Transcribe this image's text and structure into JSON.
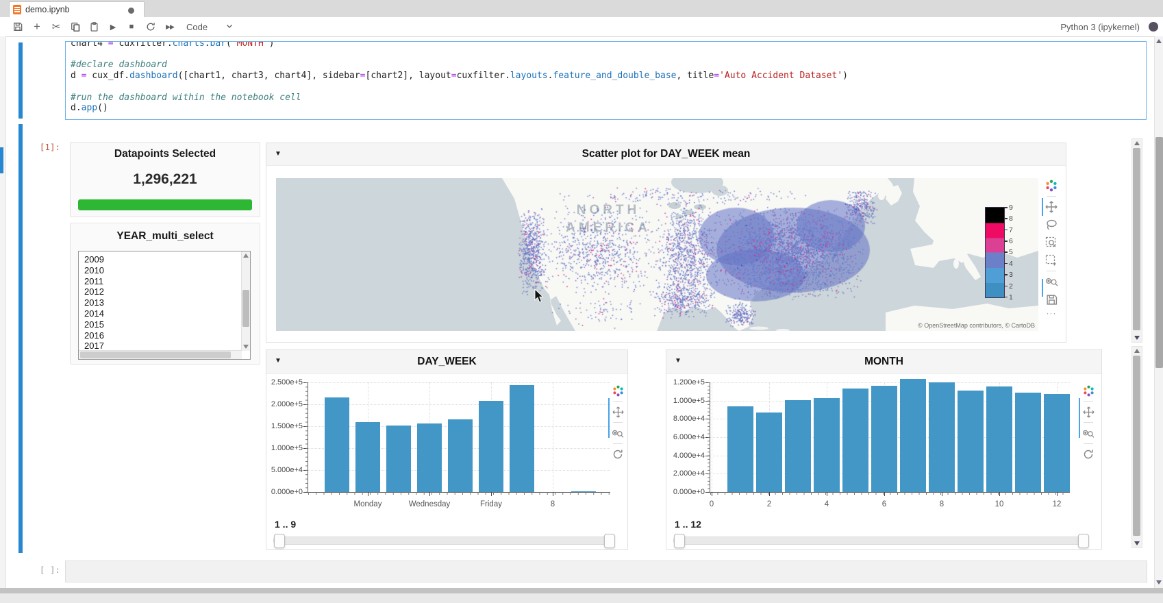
{
  "window": {
    "tab": {
      "title": "demo.ipynb",
      "modified": true
    }
  },
  "toolbar": {
    "celltype": "Code",
    "kernel": "Python 3 (ipykernel)"
  },
  "cell": {
    "out_prompt": "[1]:",
    "empty_prompt": "[ ]:",
    "code_lines": [
      [
        [
          "n",
          "chart4 "
        ],
        [
          "op",
          "="
        ],
        [
          "n",
          " cuxfilter."
        ],
        [
          "pp",
          "charts"
        ],
        [
          "n",
          "."
        ],
        [
          "pp",
          "bar"
        ],
        [
          "n",
          "("
        ],
        [
          "str",
          "'MONTH'"
        ],
        [
          "n",
          ")"
        ]
      ],
      [],
      [
        [
          "com",
          "#declare dashboard"
        ]
      ],
      [
        [
          "n",
          "d "
        ],
        [
          "op",
          "="
        ],
        [
          "n",
          " cux_df."
        ],
        [
          "pp",
          "dashboard"
        ],
        [
          "n",
          "([chart1, chart3, chart4], sidebar"
        ],
        [
          "op",
          "="
        ],
        [
          "n",
          "[chart2], layout"
        ],
        [
          "op",
          "="
        ],
        [
          "n",
          "cuxfilter."
        ],
        [
          "pp",
          "layouts"
        ],
        [
          "n",
          "."
        ],
        [
          "pp",
          "feature_and_double_base"
        ],
        [
          "n",
          ", title"
        ],
        [
          "op",
          "="
        ],
        [
          "str",
          "'Auto Accident Dataset'"
        ],
        [
          "n",
          ")"
        ]
      ],
      [],
      [
        [
          "com",
          "#run the dashboard within the notebook cell"
        ]
      ],
      [
        [
          "n",
          "d."
        ],
        [
          "pp",
          "app"
        ],
        [
          "n",
          "()"
        ]
      ]
    ]
  },
  "dashboard": {
    "sidebar": {
      "datapoints": {
        "title": "Datapoints Selected",
        "value": "1,296,221",
        "bar_color": "#2eb734"
      },
      "year": {
        "title": "YEAR_multi_select",
        "options": [
          "2009",
          "2010",
          "2011",
          "2012",
          "2013",
          "2014",
          "2015",
          "2016",
          "2017"
        ]
      }
    },
    "scatter": {
      "title": "Scatter plot for DAY_WEEK mean",
      "map_label_line1": "NORTH",
      "map_label_line2": "AMERICA",
      "attribution": "© OpenStreetMap contributors, © CartoDB"
    }
  },
  "chart_data": [
    {
      "type": "scatter",
      "title": "Scatter plot for DAY_WEEK mean",
      "description": "Geo scatter of ~1,296,221 auto accident points over a United States basemap, colored by DAY_WEEK mean",
      "colorbar": {
        "ticks": [
          9,
          8,
          7,
          6,
          5,
          4,
          3,
          2,
          1
        ],
        "colors": [
          "#000000",
          "#ef0b64",
          "#db4095",
          "#6c80ca",
          "#4f9fd6",
          "#3e90c2"
        ]
      },
      "point_colors": {
        "dominant": "#6577c5",
        "accents": [
          "#b94a9f",
          "#e22079"
        ]
      }
    },
    {
      "type": "bar",
      "title": "DAY_WEEK",
      "x": [
        1,
        2,
        3,
        4,
        5,
        6,
        7,
        9
      ],
      "values": [
        215000,
        160000,
        152000,
        157000,
        166000,
        208000,
        244000,
        2000
      ],
      "yticks": [
        "2.500e+5",
        "2.000e+5",
        "1.500e+5",
        "1.000e+5",
        "5.000e+4",
        "0.000e+0"
      ],
      "xticks": [
        "Monday",
        "Wednesday",
        "Friday",
        "8"
      ],
      "xtick_positions": [
        2,
        4,
        6,
        8
      ],
      "ylim": [
        0,
        250000
      ],
      "xlim": [
        0.5,
        9.5
      ],
      "bar_color": "#4297c6",
      "range_label": "1 .. 9"
    },
    {
      "type": "bar",
      "title": "MONTH",
      "x": [
        1,
        2,
        3,
        4,
        5,
        6,
        7,
        8,
        9,
        10,
        11,
        12
      ],
      "values": [
        94000,
        87000,
        100500,
        103000,
        113000,
        116000,
        123500,
        120000,
        111000,
        115500,
        109000,
        107500
      ],
      "yticks": [
        "1.200e+5",
        "1.000e+5",
        "8.000e+4",
        "6.000e+4",
        "4.000e+4",
        "2.000e+4",
        "0.000e+0"
      ],
      "xticks": [
        "0",
        "2",
        "4",
        "6",
        "8",
        "10",
        "12"
      ],
      "xtick_positions": [
        0,
        2,
        4,
        6,
        8,
        10,
        12
      ],
      "ylim": [
        0,
        120000
      ],
      "xlim": [
        -0.5,
        13
      ],
      "bar_color": "#4297c6",
      "range_label": "1 .. 12"
    }
  ]
}
